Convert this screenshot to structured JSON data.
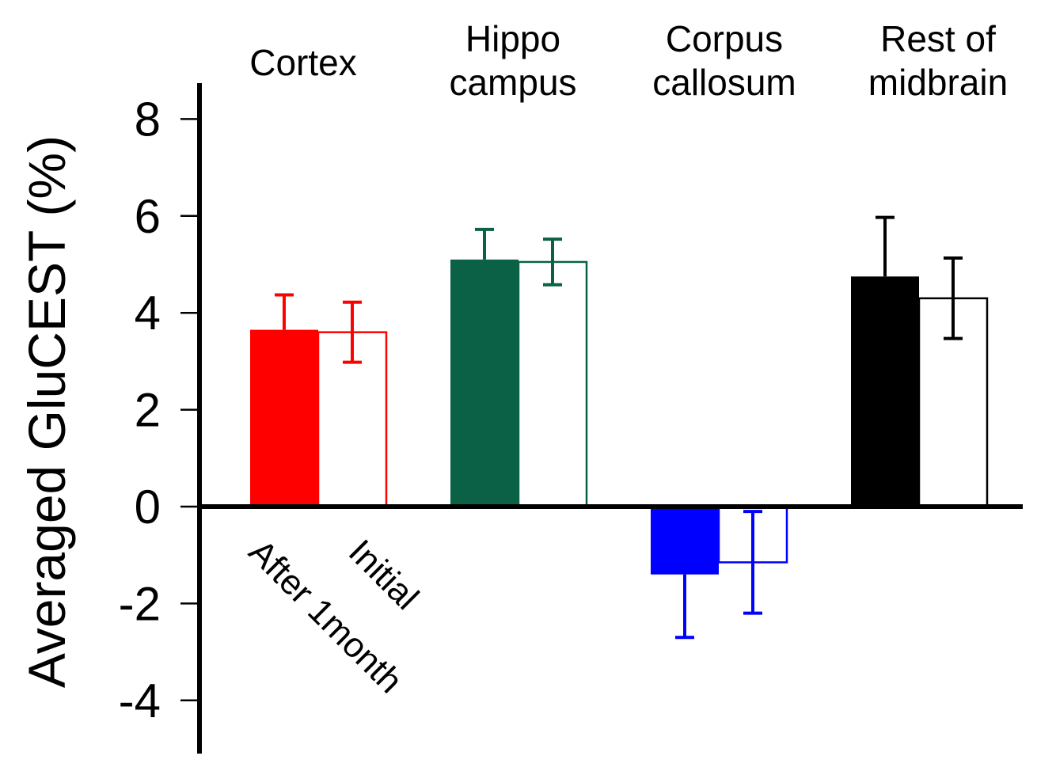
{
  "chart_data": {
    "type": "bar",
    "ylabel": "Averaged GluCEST (%)",
    "ylim": [
      -5,
      8.5
    ],
    "yticks": [
      8,
      6,
      4,
      2,
      0,
      -2,
      -4
    ],
    "series_labels": [
      "After 1month",
      "Initial"
    ],
    "groups": [
      {
        "name": "Cortex",
        "title_lines": [
          "Cortex"
        ],
        "color": "#ff0000",
        "values": [
          3.65,
          3.6
        ],
        "errors": [
          0.72,
          0.62
        ]
      },
      {
        "name": "Hippo campus",
        "title_lines": [
          "Hippo",
          "campus"
        ],
        "color": "#0b6146",
        "values": [
          5.1,
          5.05
        ],
        "errors": [
          0.62,
          0.47
        ]
      },
      {
        "name": "Corpus callosum",
        "title_lines": [
          "Corpus",
          "callosum"
        ],
        "color": "#0000ff",
        "values": [
          -1.4,
          -1.15
        ],
        "errors": [
          1.3,
          1.05
        ]
      },
      {
        "name": "Rest of midbrain",
        "title_lines": [
          "Rest of",
          "midbrain"
        ],
        "color": "#000000",
        "values": [
          4.75,
          4.3
        ],
        "errors": [
          1.22,
          0.83
        ]
      }
    ]
  }
}
